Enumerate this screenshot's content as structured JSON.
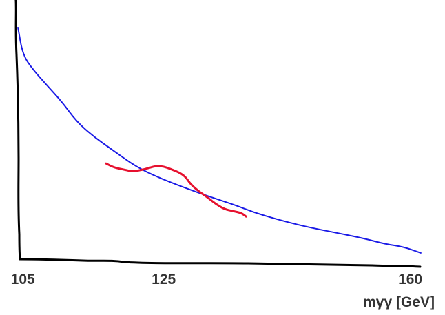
{
  "chart_data": {
    "type": "line",
    "title": "",
    "xlabel": "mγγ [GeV]",
    "ylabel": "",
    "xlim": [
      104,
      162
    ],
    "ylim": [
      0,
      100
    ],
    "xticks": [
      {
        "value": 105,
        "label": "105"
      },
      {
        "value": 125,
        "label": "125"
      },
      {
        "value": 160,
        "label": "160"
      }
    ],
    "grid": false,
    "legend": "none",
    "series": [
      {
        "role": "background",
        "color": "#1a1ae6",
        "x": [
          104.3,
          105.0,
          106.5,
          108.4,
          110.5,
          112.6,
          115.0,
          117.8,
          121.0,
          124.5,
          128.0,
          131.5,
          135.0,
          138.0,
          141.0,
          145.0,
          150.0,
          153.5,
          156.5,
          159.0,
          161.5
        ],
        "y": [
          100.0,
          88.1,
          81.6,
          75.1,
          68.1,
          59.5,
          53.0,
          47.0,
          40.0,
          34.9,
          30.8,
          27.0,
          23.5,
          20.0,
          17.3,
          14.1,
          11.1,
          8.9,
          6.5,
          5.4,
          2.7
        ]
      },
      {
        "role": "signal",
        "color": "#e6102e",
        "x": [
          116.8,
          118.0,
          119.5,
          120.5,
          122.0,
          123.0,
          124.0,
          125.0,
          126.0,
          127.3,
          128.1,
          128.8,
          130.0,
          131.3,
          132.4,
          133.6,
          134.8,
          136.0,
          136.7
        ],
        "y": [
          41.3,
          39.5,
          38.6,
          37.8,
          38.6,
          39.5,
          40.3,
          40.0,
          38.9,
          37.3,
          35.5,
          32.4,
          29.2,
          26.5,
          23.8,
          21.6,
          20.8,
          20.0,
          18.4
        ]
      }
    ]
  },
  "colors": {
    "axis": "#000000",
    "tick_text": "#333333",
    "background_fit": "#1a1ae6",
    "signal": "#e6102e"
  }
}
